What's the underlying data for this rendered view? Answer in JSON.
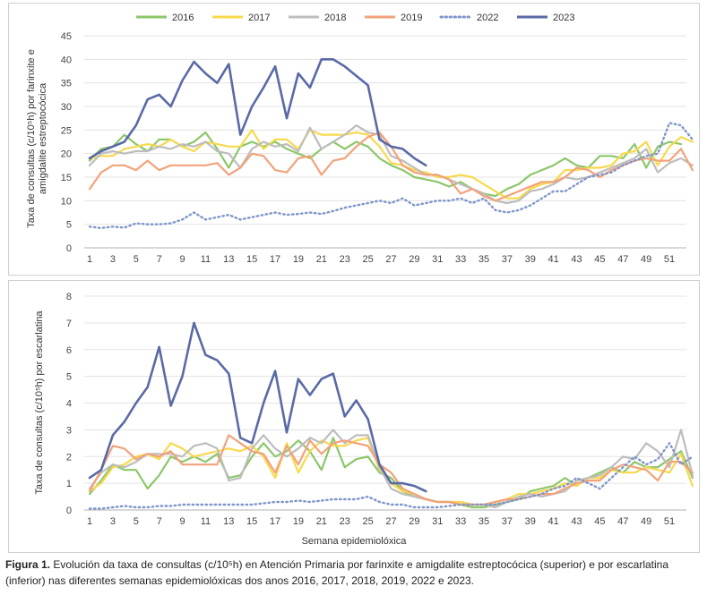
{
  "figure": {
    "caption_label": "Figura 1.",
    "caption_text": "Evolución da taxa de consultas (c/10⁵h) en Atención Primaria por farinxite e amigdalite estreptocócica (superior) e por escarlatina (inferior) nas diferentes semanas epidemiolóxicas dos anos 2016, 2017, 2018, 2019, 2022 e 2023.",
    "legend_title": "",
    "series_colors": {
      "2016": "#8cc76a",
      "2017": "#f7d94c",
      "2018": "#bdbdbd",
      "2019": "#f2a27a",
      "2022": "#7f96c9",
      "2023": "#5a6aa6"
    }
  },
  "chart_data": [
    {
      "type": "line",
      "title": "",
      "ylabel_line1": "Taxa de consultas (c/10⁵h) por farinxite e",
      "ylabel_line2": "amigdalite estreptocócica",
      "xlabel": "",
      "ylim": [
        0,
        45
      ],
      "yticks": [
        "0",
        "5",
        "10",
        "15",
        "20",
        "25",
        "30",
        "35",
        "40",
        "45"
      ],
      "xticks": [
        "1",
        "3",
        "5",
        "7",
        "9",
        "11",
        "13",
        "15",
        "17",
        "19",
        "21",
        "23",
        "25",
        "27",
        "29",
        "31",
        "33",
        "35",
        "37",
        "39",
        "41",
        "43",
        "45",
        "47",
        "49",
        "51"
      ],
      "x_max": 52,
      "series": [
        {
          "name": "2016",
          "values": [
            18.5,
            21,
            21.5,
            24,
            22,
            20.5,
            23,
            23,
            21.5,
            22.5,
            24.5,
            21,
            17,
            21.5,
            22.5,
            21.5,
            22.5,
            21,
            20,
            19,
            21,
            22.5,
            21,
            22.5,
            21.5,
            19,
            17.5,
            16.5,
            15,
            14.5,
            14,
            13,
            14,
            12.5,
            11.5,
            11,
            12.5,
            13.5,
            15.5,
            16.5,
            17.5,
            19,
            17.5,
            17,
            19.5,
            19.5,
            19,
            22,
            17,
            21.5,
            22.5,
            22
          ]
        },
        {
          "name": "2017",
          "values": [
            19,
            19.5,
            19.5,
            21,
            21.5,
            22,
            21.5,
            23,
            21.5,
            20.5,
            22.5,
            22,
            21.5,
            21.5,
            25,
            21,
            23,
            23,
            21,
            25,
            24,
            24,
            24,
            24.5,
            24,
            21.5,
            18,
            17.5,
            16.5,
            16,
            15,
            15,
            15.5,
            15,
            13.5,
            12,
            10.5,
            10.5,
            12.5,
            13.5,
            14,
            16.5,
            16.5,
            17,
            17,
            17.5,
            20,
            20.5,
            22.5,
            17.5,
            21.5,
            23.5,
            22.5
          ]
        },
        {
          "name": "2018",
          "values": [
            17.5,
            20,
            20.5,
            20,
            20.5,
            20.5,
            21.5,
            21,
            22,
            21.5,
            22.5,
            20.5,
            20,
            17,
            21,
            22.5,
            21.5,
            22,
            20.5,
            25.5,
            21,
            22.5,
            24,
            26,
            24.5,
            24,
            19.5,
            18.5,
            17,
            15.5,
            15.5,
            14.5,
            13.5,
            12.5,
            11.5,
            10,
            9.5,
            10,
            12,
            12.5,
            13.5,
            15,
            14.5,
            15,
            16,
            17,
            18,
            19,
            21,
            16,
            18,
            19,
            17.5
          ]
        },
        {
          "name": "2019",
          "values": [
            12.5,
            16,
            17.5,
            17.5,
            16.5,
            18.5,
            16.5,
            17.5,
            17.5,
            17.5,
            17.5,
            18,
            15.5,
            17,
            20,
            19.5,
            16.5,
            16,
            19,
            19.5,
            15.5,
            18.5,
            19,
            21.5,
            23.5,
            24.5,
            21.5,
            17.5,
            16,
            15.5,
            15.5,
            14.5,
            11.5,
            12.5,
            11,
            10,
            11,
            12,
            13,
            14,
            14,
            15,
            17,
            16.5,
            15,
            16.5,
            17.5,
            18.5,
            19,
            18.5,
            18.5,
            21,
            16.5
          ]
        },
        {
          "name": "2022",
          "style": "dotted",
          "values": [
            4.5,
            4.2,
            4.5,
            4.3,
            5.2,
            5,
            5,
            5.2,
            6,
            7.5,
            6,
            6.5,
            7,
            6,
            6.5,
            7,
            7.5,
            7,
            7.2,
            7.5,
            7.2,
            7.8,
            8.5,
            9,
            9.5,
            10,
            9.5,
            10.5,
            9,
            9.5,
            10,
            10,
            10.5,
            9.5,
            10.5,
            8,
            7.5,
            8,
            9,
            10.5,
            12,
            12,
            13.5,
            15,
            15.5,
            16,
            17.5,
            18.5,
            19.5,
            20,
            26.5,
            26,
            23
          ]
        },
        {
          "name": "2023",
          "values": [
            19,
            20.5,
            21.5,
            22.5,
            26,
            31.5,
            32.5,
            30,
            35.5,
            39.5,
            37,
            35,
            39,
            24,
            30,
            34,
            38.5,
            27.5,
            37,
            34,
            40,
            40,
            38.5,
            36.5,
            34.5,
            23,
            21.5,
            21,
            19,
            17.5
          ]
        }
      ]
    },
    {
      "type": "line",
      "title": "",
      "ylabel": "Taxa de consultas (c/10⁵h) por escarlatina",
      "xlabel": "Semana epidemiolóxica",
      "ylim": [
        0,
        8
      ],
      "yticks": [
        "0",
        "1",
        "2",
        "3",
        "4",
        "5",
        "6",
        "7",
        "8"
      ],
      "xticks": [
        "1",
        "3",
        "5",
        "7",
        "9",
        "11",
        "13",
        "15",
        "17",
        "19",
        "21",
        "23",
        "25",
        "27",
        "29",
        "31",
        "33",
        "35",
        "37",
        "39",
        "41",
        "43",
        "45",
        "47",
        "49",
        "51"
      ],
      "x_max": 52,
      "series": [
        {
          "name": "2016",
          "values": [
            0.6,
            1.1,
            1.7,
            1.5,
            1.5,
            0.8,
            1.3,
            2,
            1.8,
            2,
            1.8,
            2.1,
            1.2,
            1.3,
            2,
            2.5,
            2,
            2.2,
            2.6,
            2.2,
            1.5,
            2.7,
            1.6,
            1.9,
            2,
            1.4,
            1.2,
            0.7,
            0.5,
            0.4,
            0.3,
            0.3,
            0.2,
            0.1,
            0.1,
            0.2,
            0.3,
            0.4,
            0.7,
            0.8,
            0.9,
            1.2,
            0.9,
            1.2,
            1.4,
            1.6,
            1.4,
            1.8,
            1.6,
            1.6,
            1.9,
            2.2,
            1.2
          ]
        },
        {
          "name": "2017",
          "values": [
            0.7,
            1,
            1.6,
            1.7,
            2,
            2.1,
            1.9,
            2.5,
            2.3,
            2,
            2.1,
            2.2,
            2.3,
            2.2,
            2.4,
            2,
            1.2,
            2.5,
            1.4,
            2.2,
            2.6,
            2.4,
            2.4,
            2.6,
            2.7,
            1.5,
            1,
            0.7,
            0.6,
            0.4,
            0.3,
            0.3,
            0.3,
            0.2,
            0.2,
            0.3,
            0.4,
            0.6,
            0.6,
            0.7,
            0.8,
            1,
            0.9,
            1.2,
            1.2,
            1.5,
            1.4,
            1.4,
            1.6,
            1.5,
            1.4,
            2.1,
            0.9
          ]
        },
        {
          "name": "2018",
          "values": [
            0.8,
            1.4,
            1.7,
            1.6,
            1.8,
            2.1,
            2.1,
            2.1,
            2,
            2.4,
            2.5,
            2.3,
            1.1,
            1.2,
            2.3,
            2.8,
            2.3,
            2,
            2.3,
            2.7,
            2.5,
            3,
            2.5,
            2.8,
            2.8,
            1.6,
            0.8,
            0.6,
            0.5,
            0.4,
            0.3,
            0.3,
            0.2,
            0.2,
            0.2,
            0.1,
            0.3,
            0.5,
            0.6,
            0.5,
            0.6,
            0.7,
            1.1,
            1.2,
            1.3,
            1.6,
            2,
            1.9,
            2.5,
            2.2,
            1.6,
            3,
            1.3
          ]
        },
        {
          "name": "2019",
          "values": [
            0.7,
            1.5,
            2.4,
            2.3,
            1.9,
            2.1,
            2,
            2.2,
            1.7,
            1.7,
            1.7,
            1.7,
            2.8,
            2.5,
            2.2,
            2.1,
            1.4,
            2.4,
            1.7,
            2.6,
            2.1,
            2.5,
            2.6,
            2.5,
            2.4,
            1.7,
            1.4,
            0.8,
            0.6,
            0.4,
            0.3,
            0.3,
            0.2,
            0.2,
            0.2,
            0.3,
            0.4,
            0.4,
            0.5,
            0.6,
            0.6,
            0.8,
            1,
            1.1,
            1.1,
            1.5,
            1.7,
            1.6,
            1.5,
            1.1,
            1.8,
            1.8,
            1.4
          ]
        },
        {
          "name": "2022",
          "style": "dotted",
          "values": [
            0.05,
            0.05,
            0.1,
            0.15,
            0.1,
            0.1,
            0.15,
            0.15,
            0.2,
            0.2,
            0.2,
            0.2,
            0.2,
            0.2,
            0.2,
            0.25,
            0.3,
            0.3,
            0.35,
            0.3,
            0.35,
            0.4,
            0.4,
            0.4,
            0.5,
            0.3,
            0.2,
            0.2,
            0.1,
            0.1,
            0.1,
            0.15,
            0.2,
            0.2,
            0.2,
            0.2,
            0.3,
            0.4,
            0.5,
            0.6,
            0.8,
            0.9,
            1.2,
            1,
            0.8,
            1.2,
            1.6,
            2,
            1.7,
            1.9,
            2.5,
            1.7,
            2
          ]
        },
        {
          "name": "2023",
          "values": [
            1.2,
            1.5,
            2.8,
            3.3,
            4,
            4.6,
            6.1,
            3.9,
            5,
            7,
            5.8,
            5.6,
            5.1,
            2.7,
            2.5,
            4,
            5.2,
            2.9,
            4.9,
            4.3,
            4.9,
            5.1,
            3.5,
            4.1,
            3.4,
            1.7,
            1,
            1,
            0.9,
            0.7
          ]
        }
      ]
    }
  ]
}
